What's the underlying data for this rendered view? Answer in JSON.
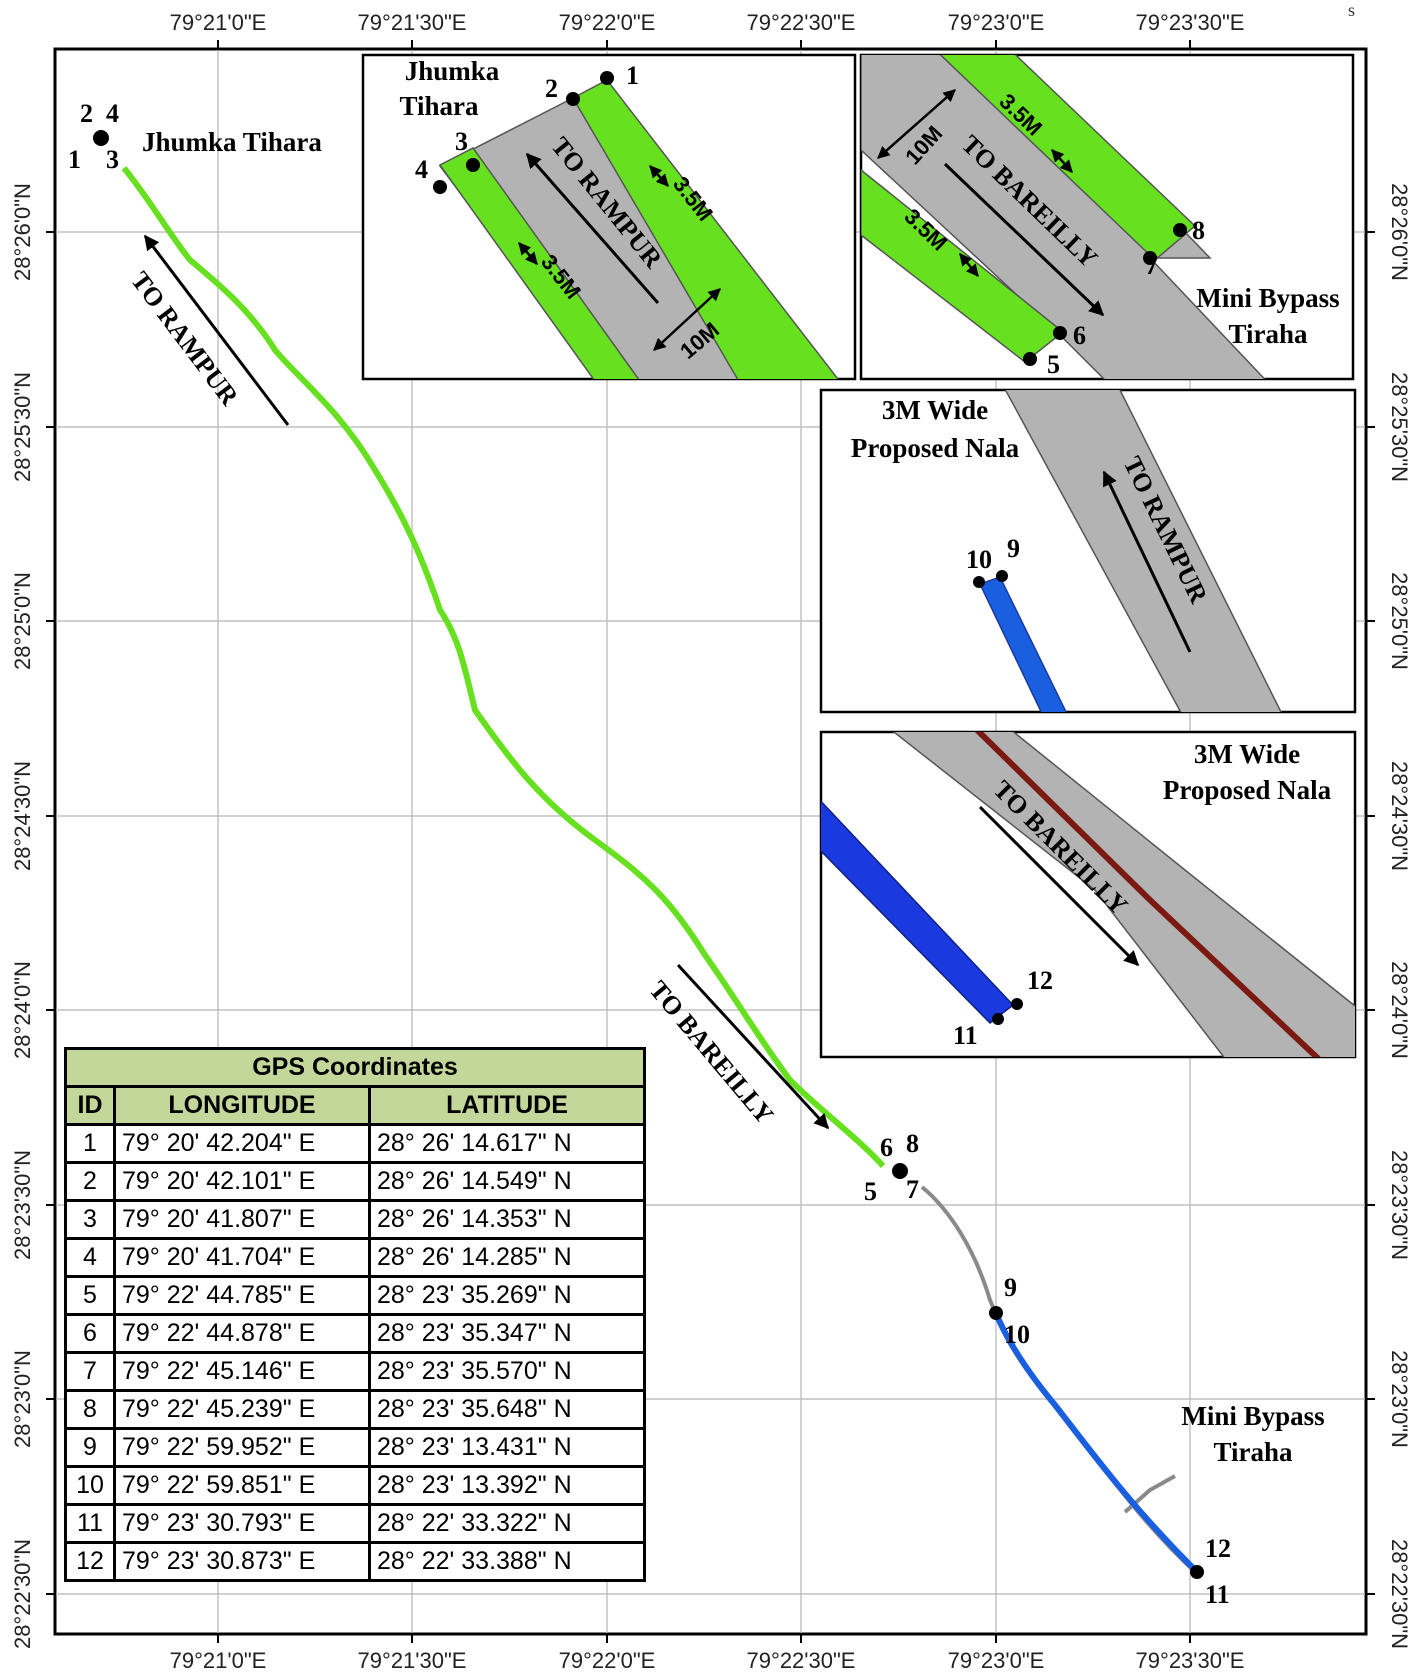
{
  "lon_ticks": [
    "79°21'0\"E",
    "79°21'30\"E",
    "79°22'0\"E",
    "79°22'30\"E",
    "79°23'0\"E",
    "79°23'30\"E"
  ],
  "lat_ticks": [
    "28°26'0\"N",
    "28°25'30\"N",
    "28°25'0\"N",
    "28°24'30\"N",
    "28°24'0\"N",
    "28°23'30\"N",
    "28°23'0\"N",
    "28°22'30\"N"
  ],
  "corner_mark": "s",
  "main_map": {
    "place_jhumka": "Jhumka Tihara",
    "place_mini_line1": "Mini Bypass",
    "place_mini_line2": "Tiraha",
    "road_to_rampur": "TO RAMPUR",
    "road_to_bareilly": "TO BAREILLY",
    "point_labels": [
      "1",
      "2",
      "3",
      "4",
      "5",
      "6",
      "7",
      "8",
      "9",
      "10",
      "11",
      "12"
    ]
  },
  "inset1": {
    "place_line1": "Jhumka",
    "place_line2": "Tihara",
    "road_label": "TO RAMPUR",
    "width_lane": "3.5M",
    "width_road": "10M",
    "point_labels": [
      "1",
      "2",
      "3",
      "4"
    ]
  },
  "inset2": {
    "place_line1": "Mini Bypass",
    "place_line2": "Tiraha",
    "road_label": "TO BAREILLY",
    "width_lane": "3.5M",
    "width_road": "10M",
    "point_labels": [
      "5",
      "6",
      "7",
      "8"
    ]
  },
  "inset3": {
    "nala_line1": "3M Wide",
    "nala_line2": "Proposed Nala",
    "road_label": "TO RAMPUR",
    "point_labels": [
      "9",
      "10"
    ]
  },
  "inset4": {
    "nala_line1": "3M Wide",
    "nala_line2": "Proposed Nala",
    "road_label": "TO BAREILLY",
    "point_labels": [
      "11",
      "12"
    ]
  },
  "colors": {
    "lane_green": "#66e01f",
    "road_grey": "#b3b3b3",
    "nala_blue": "#1a5fe0",
    "centre_line": "#7a1a12",
    "table_header": "#c4d79b"
  },
  "gps_table": {
    "title": "GPS Coordinates",
    "headers": [
      "ID",
      "LONGITUDE",
      "LATITUDE"
    ],
    "rows": [
      {
        "id": "1",
        "lon": "79° 20' 42.204\" E",
        "lat": "28° 26' 14.617\" N"
      },
      {
        "id": "2",
        "lon": "79° 20' 42.101\" E",
        "lat": "28° 26' 14.549\" N"
      },
      {
        "id": "3",
        "lon": "79° 20' 41.807\" E",
        "lat": "28° 26' 14.353\" N"
      },
      {
        "id": "4",
        "lon": "79° 20' 41.704\" E",
        "lat": "28° 26' 14.285\" N"
      },
      {
        "id": "5",
        "lon": "79° 22' 44.785\" E",
        "lat": "28° 23' 35.269\" N"
      },
      {
        "id": "6",
        "lon": "79° 22' 44.878\" E",
        "lat": "28° 23' 35.347\" N"
      },
      {
        "id": "7",
        "lon": "79° 22' 45.146\" E",
        "lat": "28° 23' 35.570\" N"
      },
      {
        "id": "8",
        "lon": "79° 22' 45.239\" E",
        "lat": "28° 23' 35.648\" N"
      },
      {
        "id": "9",
        "lon": "79° 22' 59.952\" E",
        "lat": "28° 23' 13.431\" N"
      },
      {
        "id": "10",
        "lon": "79° 22' 59.851\" E",
        "lat": "28° 23' 13.392\" N"
      },
      {
        "id": "11",
        "lon": "79° 23' 30.793\" E",
        "lat": "28° 22' 33.322\" N"
      },
      {
        "id": "12",
        "lon": "79° 23' 30.873\" E",
        "lat": "28° 22' 33.388\" N"
      }
    ]
  }
}
